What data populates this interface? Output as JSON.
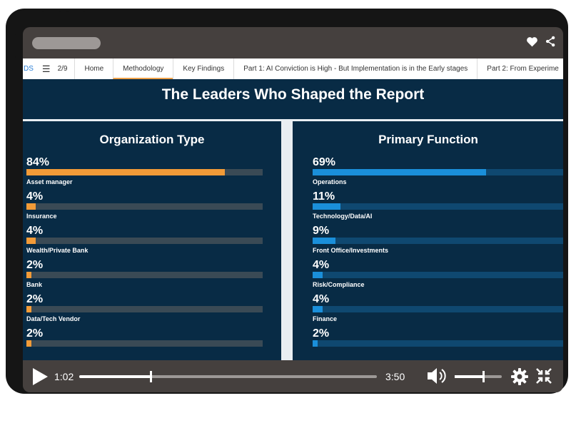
{
  "nav": {
    "cut_text": "DS",
    "page_indicator": "2/9",
    "tabs": [
      {
        "label": "Home"
      },
      {
        "label": "Methodology",
        "active": true
      },
      {
        "label": "Key Findings"
      },
      {
        "label": "Part 1: AI Conviction is High - But Implementation is in the Early stages"
      },
      {
        "label": "Part 2: From Experime"
      }
    ]
  },
  "content": {
    "title": "The Leaders Who Shaped the Report",
    "left_panel": {
      "title": "Organization Type",
      "accent": "#f29b38",
      "items": [
        {
          "pct": "84%",
          "label": "Asset manager",
          "value": 84
        },
        {
          "pct": "4%",
          "label": "Insurance",
          "value": 4
        },
        {
          "pct": "4%",
          "label": "Wealth/Private Bank",
          "value": 4
        },
        {
          "pct": "2%",
          "label": "Bank",
          "value": 2
        },
        {
          "pct": "2%",
          "label": "Data/Tech Vendor",
          "value": 2
        },
        {
          "pct": "2%",
          "label": "",
          "value": 2
        }
      ]
    },
    "right_panel": {
      "title": "Primary Function",
      "accent": "#1a8fda",
      "items": [
        {
          "pct": "69%",
          "label": "Operations",
          "value": 69
        },
        {
          "pct": "11%",
          "label": "Technology/Data/AI",
          "value": 11
        },
        {
          "pct": "9%",
          "label": "Front Office/Investments",
          "value": 9
        },
        {
          "pct": "4%",
          "label": "Risk/Compliance",
          "value": 4
        },
        {
          "pct": "4%",
          "label": "Finance",
          "value": 4
        },
        {
          "pct": "2%",
          "label": "",
          "value": 2
        }
      ]
    }
  },
  "player": {
    "current_time": "1:02",
    "duration": "3:50",
    "progress_fraction": 0.24,
    "volume_fraction": 0.6
  },
  "icons": [
    "heart-icon",
    "share-icon",
    "menu-icon",
    "play-icon",
    "volume-icon",
    "gear-icon",
    "exit-fullscreen-icon"
  ]
}
